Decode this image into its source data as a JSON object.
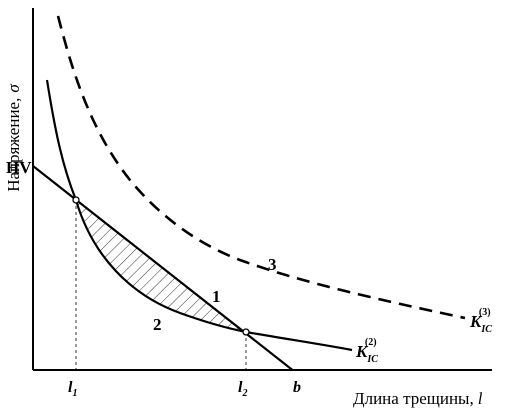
{
  "axes": {
    "y_title": "Напряжение,",
    "y_symbol": "σ",
    "x_title": "Длина трещины,",
    "x_symbol": "l"
  },
  "labels": {
    "hv": "HV",
    "l1": "l",
    "l1_sub": "1",
    "l2": "l",
    "l2_sub": "2",
    "b": "b",
    "curve_1": "1",
    "curve_2": "2",
    "curve_3": "3",
    "k2_main": "K",
    "k2_sub": "IC",
    "k2_sup": "(2)",
    "k3_main": "K",
    "k3_sub": "IC",
    "k3_sup": "(3)"
  },
  "style": {
    "ink": "#000000",
    "background": "#ffffff"
  }
}
